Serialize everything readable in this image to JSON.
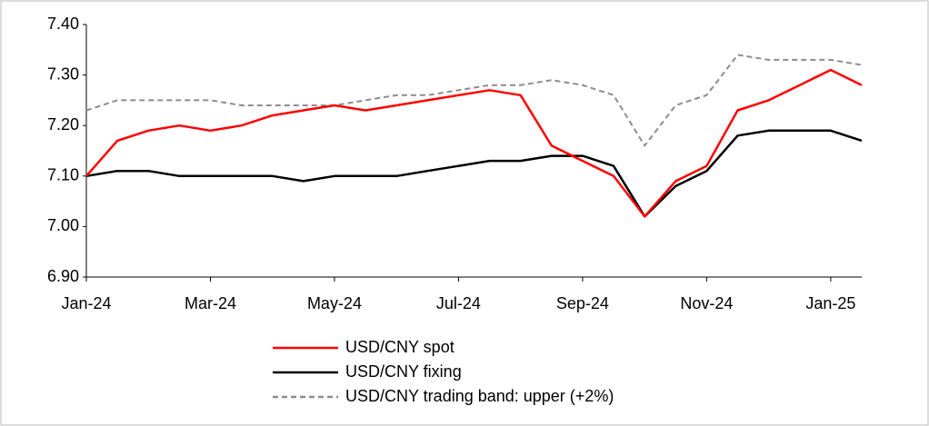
{
  "chart_data": {
    "type": "line",
    "categories": [
      "Jan-24",
      null,
      null,
      null,
      "Mar-24",
      null,
      null,
      null,
      "May-24",
      null,
      null,
      null,
      "Jul-24",
      null,
      null,
      null,
      "Sep-24",
      null,
      null,
      null,
      "Nov-24",
      null,
      null,
      null,
      "Jan-25",
      null
    ],
    "series": [
      {
        "name": "USD/CNY spot",
        "color": "#ff0000",
        "dash": "solid",
        "values": [
          7.1,
          7.17,
          7.19,
          7.2,
          7.19,
          7.2,
          7.22,
          7.23,
          7.24,
          7.23,
          7.24,
          7.25,
          7.26,
          7.27,
          7.26,
          7.16,
          7.13,
          7.1,
          7.02,
          7.09,
          7.12,
          7.23,
          7.25,
          7.28,
          7.31,
          7.28
        ]
      },
      {
        "name": "USD/CNY fixing",
        "color": "#000000",
        "dash": "solid",
        "values": [
          7.1,
          7.11,
          7.11,
          7.1,
          7.1,
          7.1,
          7.1,
          7.09,
          7.1,
          7.1,
          7.1,
          7.11,
          7.12,
          7.13,
          7.13,
          7.14,
          7.14,
          7.12,
          7.02,
          7.08,
          7.11,
          7.18,
          7.19,
          7.19,
          7.19,
          7.17
        ]
      },
      {
        "name": "USD/CNY trading band: upper (+2%)",
        "color": "#8c8c8c",
        "dash": "dashed",
        "values": [
          7.23,
          7.25,
          7.25,
          7.25,
          7.25,
          7.24,
          7.24,
          7.24,
          7.24,
          7.25,
          7.26,
          7.26,
          7.27,
          7.28,
          7.28,
          7.29,
          7.28,
          7.26,
          7.16,
          7.24,
          7.26,
          7.34,
          7.33,
          7.33,
          7.33,
          7.32
        ]
      }
    ],
    "ylim": [
      6.9,
      7.4
    ],
    "yticks": [
      {
        "value": 6.9,
        "label": "6.90"
      },
      {
        "value": 7.0,
        "label": "7.00"
      },
      {
        "value": 7.1,
        "label": "7.10"
      },
      {
        "value": 7.2,
        "label": "7.20"
      },
      {
        "value": 7.3,
        "label": "7.30"
      },
      {
        "value": 7.4,
        "label": "7.40"
      }
    ],
    "grid": false
  }
}
